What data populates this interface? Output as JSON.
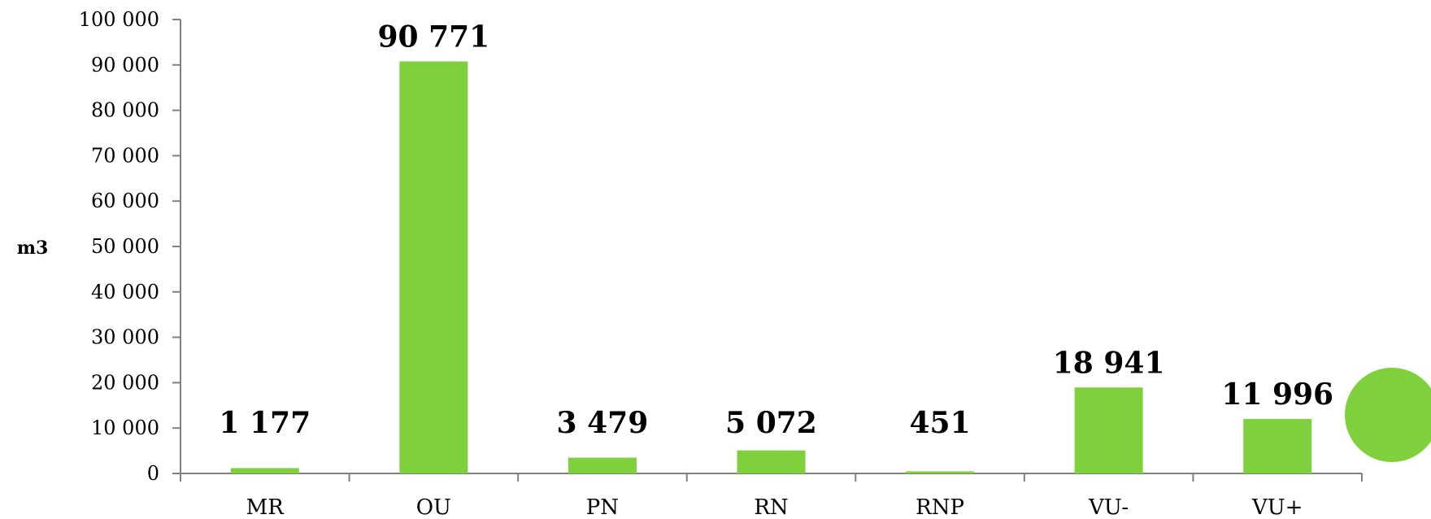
{
  "chart_data": {
    "type": "bar",
    "categories": [
      "MR",
      "OU",
      "PN",
      "RN",
      "RNP",
      "VU-",
      "VU+"
    ],
    "values": [
      1177,
      90771,
      3479,
      5072,
      451,
      18941,
      11996
    ],
    "value_labels": [
      "1 177",
      "90 771",
      "3 479",
      "5 072",
      "451",
      "18 941",
      "11 996"
    ],
    "ylabel": "m3",
    "ylim": [
      0,
      100000
    ],
    "yticks": [
      0,
      10000,
      20000,
      30000,
      40000,
      50000,
      60000,
      70000,
      80000,
      90000,
      100000
    ],
    "ytick_labels": [
      "0",
      "10 000",
      "20 000",
      "30 000",
      "40 000",
      "50 000",
      "60 000",
      "70 000",
      "80 000",
      "90 000",
      "100 000"
    ],
    "grid": false,
    "bar_color": "#7ed13c",
    "axis_color": "#808080"
  },
  "decoration": {
    "circle_color": "#7ed13c"
  }
}
